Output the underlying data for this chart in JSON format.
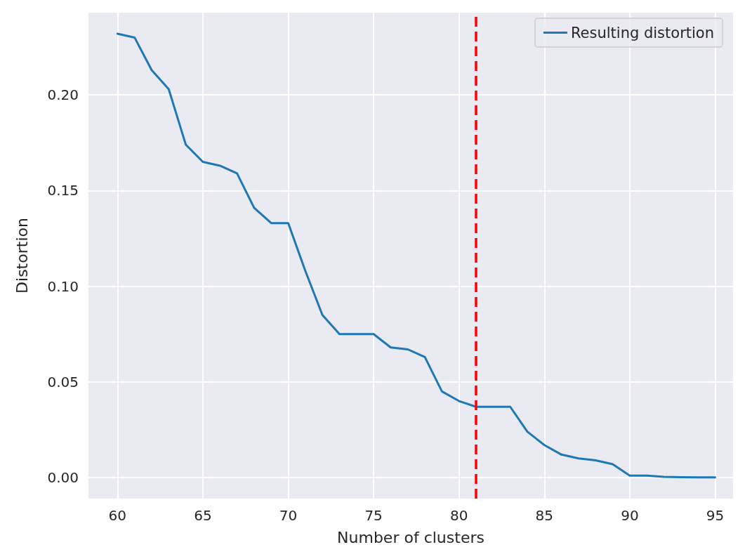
{
  "chart_data": {
    "type": "line",
    "xlabel": "Number of clusters",
    "ylabel": "Distortion",
    "x": [
      60,
      61,
      62,
      63,
      64,
      65,
      66,
      67,
      68,
      69,
      70,
      71,
      72,
      73,
      74,
      75,
      76,
      77,
      78,
      79,
      80,
      81,
      82,
      83,
      84,
      85,
      86,
      87,
      88,
      89,
      90,
      91,
      92,
      93,
      94,
      95
    ],
    "series": [
      {
        "name": "Resulting distortion",
        "color": "#1f77b4",
        "values": [
          0.232,
          0.23,
          0.213,
          0.203,
          0.174,
          0.165,
          0.163,
          0.159,
          0.141,
          0.133,
          0.133,
          0.108,
          0.085,
          0.075,
          0.075,
          0.075,
          0.068,
          0.067,
          0.063,
          0.045,
          0.04,
          0.037,
          0.037,
          0.037,
          0.024,
          0.017,
          0.012,
          0.01,
          0.009,
          0.007,
          0.001,
          0.001,
          0.0004,
          0.0002,
          0.0001,
          0.0001
        ]
      }
    ],
    "xlim": [
      58.3,
      96.05
    ],
    "xticks": [
      60,
      65,
      70,
      75,
      80,
      85,
      90,
      95
    ],
    "ylim": [
      -0.011,
      0.243
    ],
    "yticks": [
      {
        "value": 0,
        "label": "0.00"
      },
      {
        "value": 0.05,
        "label": "0.05"
      },
      {
        "value": 0.1,
        "label": "0.10"
      },
      {
        "value": 0.15,
        "label": "0.15"
      },
      {
        "value": 0.2,
        "label": "0.20"
      }
    ],
    "ref_lines": [
      {
        "axis": "x",
        "value": 81,
        "color": "#ff0000",
        "line_style": "dashed"
      }
    ],
    "grid": true,
    "legend": "top right",
    "marker": "none",
    "line_style": "solid"
  }
}
